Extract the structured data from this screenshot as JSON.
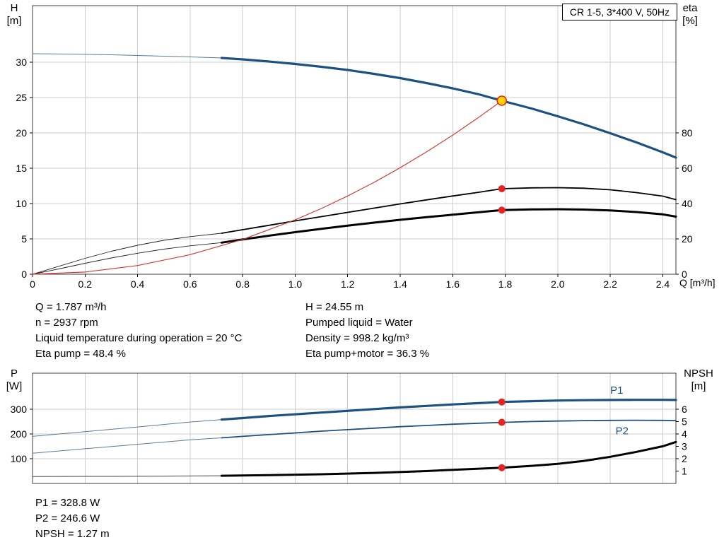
{
  "title_box": {
    "label": "CR 1-5, 3*400 V, 50Hz"
  },
  "axes_titles": {
    "top_left_1": "H",
    "top_left_2": "[m]",
    "top_right_1": "eta",
    "top_right_2": "[%]",
    "x_label": "Q [m³/h]",
    "bottom_left_1": "P",
    "bottom_left_2": "[W]",
    "bottom_right_1": "NPSH",
    "bottom_right_2": "[m]"
  },
  "info": {
    "left": [
      "Q = 1.787 m³/h",
      "n = 2937 rpm",
      "Liquid temperature during operation = 20 °C",
      "Eta pump = 48.4 %"
    ],
    "right": [
      "H = 24.55 m",
      "Pumped liquid = Water",
      "Density = 998.2 kg/m³",
      "Eta pump+motor = 36.3 %"
    ]
  },
  "results": [
    "P1 = 328.8 W",
    "P2 = 246.6 W",
    "NPSH = 1.27 m"
  ],
  "colors": {
    "curve_blue": "#1d5181",
    "lead_blue": "#5c7a94",
    "curve_black": "#000000",
    "system_red": "#d23b34",
    "dot_red": "#e8231f",
    "duty_fill": "#ffd200",
    "grid": "#cccccc",
    "border": "#3c3c3c"
  },
  "chart_data": [
    {
      "type": "line",
      "title": "CR 1-5, 3*400 V, 50Hz",
      "xlabel": "Q [m³/h]",
      "ylabel_left": "H [m]",
      "ylabel_right": "eta [%]",
      "xlim": [
        0,
        2.45
      ],
      "ylim_left": [
        0,
        38
      ],
      "ylim_right": [
        0,
        152
      ],
      "x_ticks": [
        0,
        0.2,
        0.4,
        0.6,
        0.8,
        1.0,
        1.2,
        1.4,
        1.6,
        1.8,
        2.0,
        2.2,
        2.4
      ],
      "x_tick_labels": [
        "0",
        "0.2",
        "0.4",
        "0.6",
        "0.8",
        "1.0",
        "1.2",
        "1.4",
        "1.6",
        "1.8",
        "2.0",
        "2.2",
        "2.4"
      ],
      "y_ticks_left": [
        0,
        5,
        10,
        15,
        20,
        25,
        30
      ],
      "y_tick_labels_left": [
        "0",
        "5",
        "10",
        "15",
        "20",
        "25",
        "30"
      ],
      "y_ticks_right": [
        0,
        20,
        40,
        60,
        80
      ],
      "y_tick_labels_right": [
        "0",
        "20",
        "40",
        "60",
        "80"
      ],
      "duty_point": {
        "Q": 1.787,
        "H": 24.55,
        "eta_pump": 48.4,
        "eta_pump_motor": 36.3
      },
      "series": [
        {
          "name": "h-curve-lead",
          "axis": "left",
          "color": "#5c7a94",
          "width": 1,
          "points": [
            [
              0,
              31.2
            ],
            [
              0.15,
              31.15
            ],
            [
              0.3,
              31.05
            ],
            [
              0.45,
              30.9
            ],
            [
              0.6,
              30.75
            ],
            [
              0.72,
              30.6
            ]
          ]
        },
        {
          "name": "h-curve",
          "axis": "left",
          "color": "#1d5181",
          "width": 3.2,
          "points": [
            [
              0.72,
              30.6
            ],
            [
              0.8,
              30.4
            ],
            [
              0.9,
              30.1
            ],
            [
              1.0,
              29.75
            ],
            [
              1.1,
              29.35
            ],
            [
              1.2,
              28.9
            ],
            [
              1.3,
              28.35
            ],
            [
              1.4,
              27.75
            ],
            [
              1.5,
              27.05
            ],
            [
              1.6,
              26.3
            ],
            [
              1.7,
              25.45
            ],
            [
              1.787,
              24.55
            ],
            [
              1.9,
              23.45
            ],
            [
              2.0,
              22.35
            ],
            [
              2.1,
              21.2
            ],
            [
              2.2,
              19.95
            ],
            [
              2.3,
              18.65
            ],
            [
              2.4,
              17.25
            ],
            [
              2.45,
              16.5
            ]
          ]
        },
        {
          "name": "eta-pump-curve-lead",
          "axis": "right",
          "color": "#222222",
          "width": 0.9,
          "points": [
            [
              0,
              0
            ],
            [
              0.1,
              4.5
            ],
            [
              0.2,
              9.0
            ],
            [
              0.3,
              13.0
            ],
            [
              0.4,
              16.4
            ],
            [
              0.5,
              19.2
            ],
            [
              0.6,
              21.3
            ],
            [
              0.72,
              23.2
            ]
          ]
        },
        {
          "name": "eta-pump-curve",
          "axis": "right",
          "color": "#000000",
          "width": 1.8,
          "points": [
            [
              0.72,
              23.2
            ],
            [
              0.8,
              25.2
            ],
            [
              0.9,
              27.7
            ],
            [
              1.0,
              30.2
            ],
            [
              1.1,
              32.6
            ],
            [
              1.2,
              35.0
            ],
            [
              1.3,
              37.4
            ],
            [
              1.4,
              39.8
            ],
            [
              1.5,
              42.1
            ],
            [
              1.6,
              44.3
            ],
            [
              1.7,
              46.4
            ],
            [
              1.787,
              48.4
            ],
            [
              1.9,
              48.9
            ],
            [
              2.0,
              49.0
            ],
            [
              2.1,
              48.7
            ],
            [
              2.2,
              47.8
            ],
            [
              2.3,
              46.2
            ],
            [
              2.4,
              44.2
            ],
            [
              2.45,
              42.2
            ]
          ]
        },
        {
          "name": "eta-pump-motor-curve-lead",
          "axis": "right",
          "color": "#222222",
          "width": 0.9,
          "points": [
            [
              0,
              0
            ],
            [
              0.1,
              3.0
            ],
            [
              0.2,
              6.2
            ],
            [
              0.3,
              9.2
            ],
            [
              0.4,
              11.9
            ],
            [
              0.5,
              14.2
            ],
            [
              0.6,
              16.1
            ],
            [
              0.72,
              17.9
            ]
          ]
        },
        {
          "name": "eta-pump-motor-curve",
          "axis": "right",
          "color": "#000000",
          "width": 3,
          "points": [
            [
              0.72,
              17.9
            ],
            [
              0.8,
              19.7
            ],
            [
              0.9,
              21.8
            ],
            [
              1.0,
              23.8
            ],
            [
              1.1,
              25.7
            ],
            [
              1.2,
              27.5
            ],
            [
              1.3,
              29.2
            ],
            [
              1.4,
              30.8
            ],
            [
              1.5,
              32.3
            ],
            [
              1.6,
              33.7
            ],
            [
              1.7,
              35.1
            ],
            [
              1.787,
              36.3
            ],
            [
              1.9,
              36.7
            ],
            [
              2.0,
              36.8
            ],
            [
              2.1,
              36.6
            ],
            [
              2.2,
              36.1
            ],
            [
              2.3,
              35.2
            ],
            [
              2.4,
              33.9
            ],
            [
              2.45,
              32.6
            ]
          ]
        },
        {
          "name": "system-curve",
          "axis": "left",
          "color": "#d23b34",
          "width": 1.2,
          "points": [
            [
              0,
              0
            ],
            [
              0.2,
              0.31
            ],
            [
              0.4,
              1.23
            ],
            [
              0.6,
              2.77
            ],
            [
              0.8,
              4.92
            ],
            [
              1.0,
              7.69
            ],
            [
              1.1,
              9.3
            ],
            [
              1.2,
              11.07
            ],
            [
              1.3,
              12.99
            ],
            [
              1.4,
              15.07
            ],
            [
              1.5,
              17.3
            ],
            [
              1.6,
              19.68
            ],
            [
              1.7,
              22.22
            ],
            [
              1.787,
              24.55
            ]
          ]
        }
      ],
      "markers": [
        {
          "name": "duty-point-marker",
          "kind": "duty",
          "axis": "left",
          "x": 1.787,
          "y": 24.55
        },
        {
          "name": "eta-pump-operating-dot",
          "kind": "dot",
          "axis": "right",
          "x": 1.787,
          "y": 48.4
        },
        {
          "name": "eta-pump-motor-operating-dot",
          "kind": "dot",
          "axis": "right",
          "x": 1.787,
          "y": 36.3
        }
      ],
      "curve_labels": []
    },
    {
      "type": "line",
      "title": "",
      "xlabel": "",
      "ylabel_left": "P [W]",
      "ylabel_right": "NPSH [m]",
      "xlim": [
        0,
        2.45
      ],
      "ylim_left": [
        0,
        445
      ],
      "ylim_right": [
        0,
        8.9
      ],
      "x_ticks": [
        0,
        0.2,
        0.4,
        0.6,
        0.8,
        1.0,
        1.2,
        1.4,
        1.6,
        1.8,
        2.0,
        2.2,
        2.4
      ],
      "x_tick_labels": [],
      "y_ticks_left": [
        100,
        200,
        300
      ],
      "y_tick_labels_left": [
        "100",
        "200",
        "300"
      ],
      "y_ticks_right": [
        1,
        2,
        3,
        4,
        5,
        6
      ],
      "y_tick_labels_right": [
        "1",
        "2",
        "3",
        "4",
        "5",
        "6"
      ],
      "duty_point": {
        "Q": 1.787,
        "P1": 328.8,
        "P2": 246.6,
        "NPSH": 1.27
      },
      "series": [
        {
          "name": "p1-curve-lead",
          "axis": "left",
          "color": "#5c7a94",
          "width": 1,
          "points": [
            [
              0,
              190
            ],
            [
              0.2,
              209
            ],
            [
              0.4,
              228
            ],
            [
              0.6,
              248
            ],
            [
              0.72,
              258
            ]
          ]
        },
        {
          "name": "p1-curve",
          "axis": "left",
          "color": "#1d5181",
          "width": 3.2,
          "points": [
            [
              0.72,
              258
            ],
            [
              0.8,
              264
            ],
            [
              0.9,
              272
            ],
            [
              1.0,
              279
            ],
            [
              1.1,
              286
            ],
            [
              1.2,
              293
            ],
            [
              1.3,
              300
            ],
            [
              1.4,
              307
            ],
            [
              1.5,
              313
            ],
            [
              1.6,
              319
            ],
            [
              1.7,
              324
            ],
            [
              1.787,
              328.8
            ],
            [
              1.9,
              332
            ],
            [
              2.0,
              334.5
            ],
            [
              2.1,
              336
            ],
            [
              2.2,
              337
            ],
            [
              2.3,
              337.5
            ],
            [
              2.4,
              337.5
            ],
            [
              2.45,
              337
            ]
          ]
        },
        {
          "name": "p2-curve-lead",
          "axis": "left",
          "color": "#5c7a94",
          "width": 1,
          "points": [
            [
              0,
              122
            ],
            [
              0.2,
              140
            ],
            [
              0.4,
              158
            ],
            [
              0.6,
              176
            ],
            [
              0.72,
              184
            ]
          ]
        },
        {
          "name": "p2-curve",
          "axis": "left",
          "color": "#1d5181",
          "width": 1.8,
          "points": [
            [
              0.72,
              184
            ],
            [
              0.8,
              190
            ],
            [
              0.9,
              197
            ],
            [
              1.0,
              204
            ],
            [
              1.1,
              211
            ],
            [
              1.2,
              217
            ],
            [
              1.3,
              223
            ],
            [
              1.4,
              229
            ],
            [
              1.5,
              234
            ],
            [
              1.6,
              239
            ],
            [
              1.7,
              243
            ],
            [
              1.787,
              246.6
            ],
            [
              1.9,
              250
            ],
            [
              2.0,
              252
            ],
            [
              2.1,
              253.5
            ],
            [
              2.2,
              254.5
            ],
            [
              2.3,
              255
            ],
            [
              2.4,
              254.5
            ],
            [
              2.45,
              254
            ]
          ]
        },
        {
          "name": "npsh-curve-lead",
          "axis": "right",
          "color": "#444444",
          "width": 1,
          "points": [
            [
              0,
              0.56
            ],
            [
              0.3,
              0.57
            ],
            [
              0.5,
              0.59
            ],
            [
              0.72,
              0.62
            ]
          ]
        },
        {
          "name": "npsh-curve",
          "axis": "right",
          "color": "#000000",
          "width": 3,
          "points": [
            [
              0.72,
              0.62
            ],
            [
              0.9,
              0.67
            ],
            [
              1.1,
              0.74
            ],
            [
              1.3,
              0.85
            ],
            [
              1.5,
              1.0
            ],
            [
              1.6,
              1.1
            ],
            [
              1.7,
              1.19
            ],
            [
              1.787,
              1.27
            ],
            [
              1.9,
              1.42
            ],
            [
              2.0,
              1.58
            ],
            [
              2.1,
              1.82
            ],
            [
              2.2,
              2.15
            ],
            [
              2.3,
              2.55
            ],
            [
              2.4,
              3.0
            ],
            [
              2.45,
              3.35
            ]
          ]
        }
      ],
      "markers": [
        {
          "name": "p1-operating-dot",
          "kind": "dot",
          "axis": "left",
          "x": 1.787,
          "y": 328.8
        },
        {
          "name": "p2-operating-dot",
          "kind": "dot",
          "axis": "left",
          "x": 1.787,
          "y": 246.6
        },
        {
          "name": "npsh-operating-dot",
          "kind": "dot",
          "axis": "right",
          "x": 1.787,
          "y": 1.27
        }
      ],
      "curve_labels": [
        {
          "text": "P1",
          "x": 2.2,
          "y": 362,
          "axis": "left",
          "color": "#1d5181"
        },
        {
          "text": "P2",
          "x": 2.22,
          "y": 198,
          "axis": "left",
          "color": "#1d5181"
        }
      ]
    }
  ]
}
